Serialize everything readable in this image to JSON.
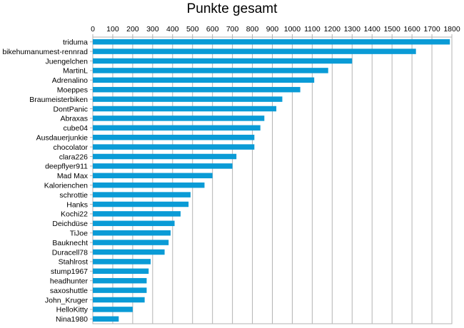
{
  "chart_data": {
    "type": "bar",
    "orientation": "horizontal",
    "title": "Punkte gesamt",
    "xlabel": "",
    "ylabel": "",
    "xlim": [
      0,
      1800
    ],
    "x_ticks": [
      0,
      100,
      200,
      300,
      400,
      500,
      600,
      700,
      800,
      900,
      1000,
      1100,
      1200,
      1300,
      1400,
      1500,
      1600,
      1700,
      1800
    ],
    "x_axis_position": "top",
    "grid": "vertical",
    "legend": "none",
    "bar_color": "#0a9bd6",
    "categories": [
      "triduma",
      "bikehumanumest-rennrad",
      "Juengelchen",
      "MartinL",
      "Adrenalino",
      "Moeppes",
      "Braumeisterbiken",
      "DontPanic",
      "Abraxas",
      "cube04",
      "Ausdauerjunkie",
      "chocolator",
      "clara226",
      "deepflyer911",
      "Mad Max",
      "Kalorienchen",
      "schrottie",
      "Hanks",
      "Kochi22",
      "Deichdüse",
      "TiJoe",
      "Bauknecht",
      "Duracell78",
      "Stahlrost",
      "stump1967",
      "headhunter",
      "saxoshuttle",
      "John_Kruger",
      "HelloKitty",
      "Nina1980"
    ],
    "values": [
      1790,
      1620,
      1300,
      1180,
      1110,
      1040,
      950,
      920,
      860,
      840,
      810,
      810,
      720,
      700,
      600,
      560,
      490,
      480,
      440,
      410,
      390,
      380,
      360,
      290,
      280,
      270,
      270,
      260,
      200,
      130
    ]
  }
}
